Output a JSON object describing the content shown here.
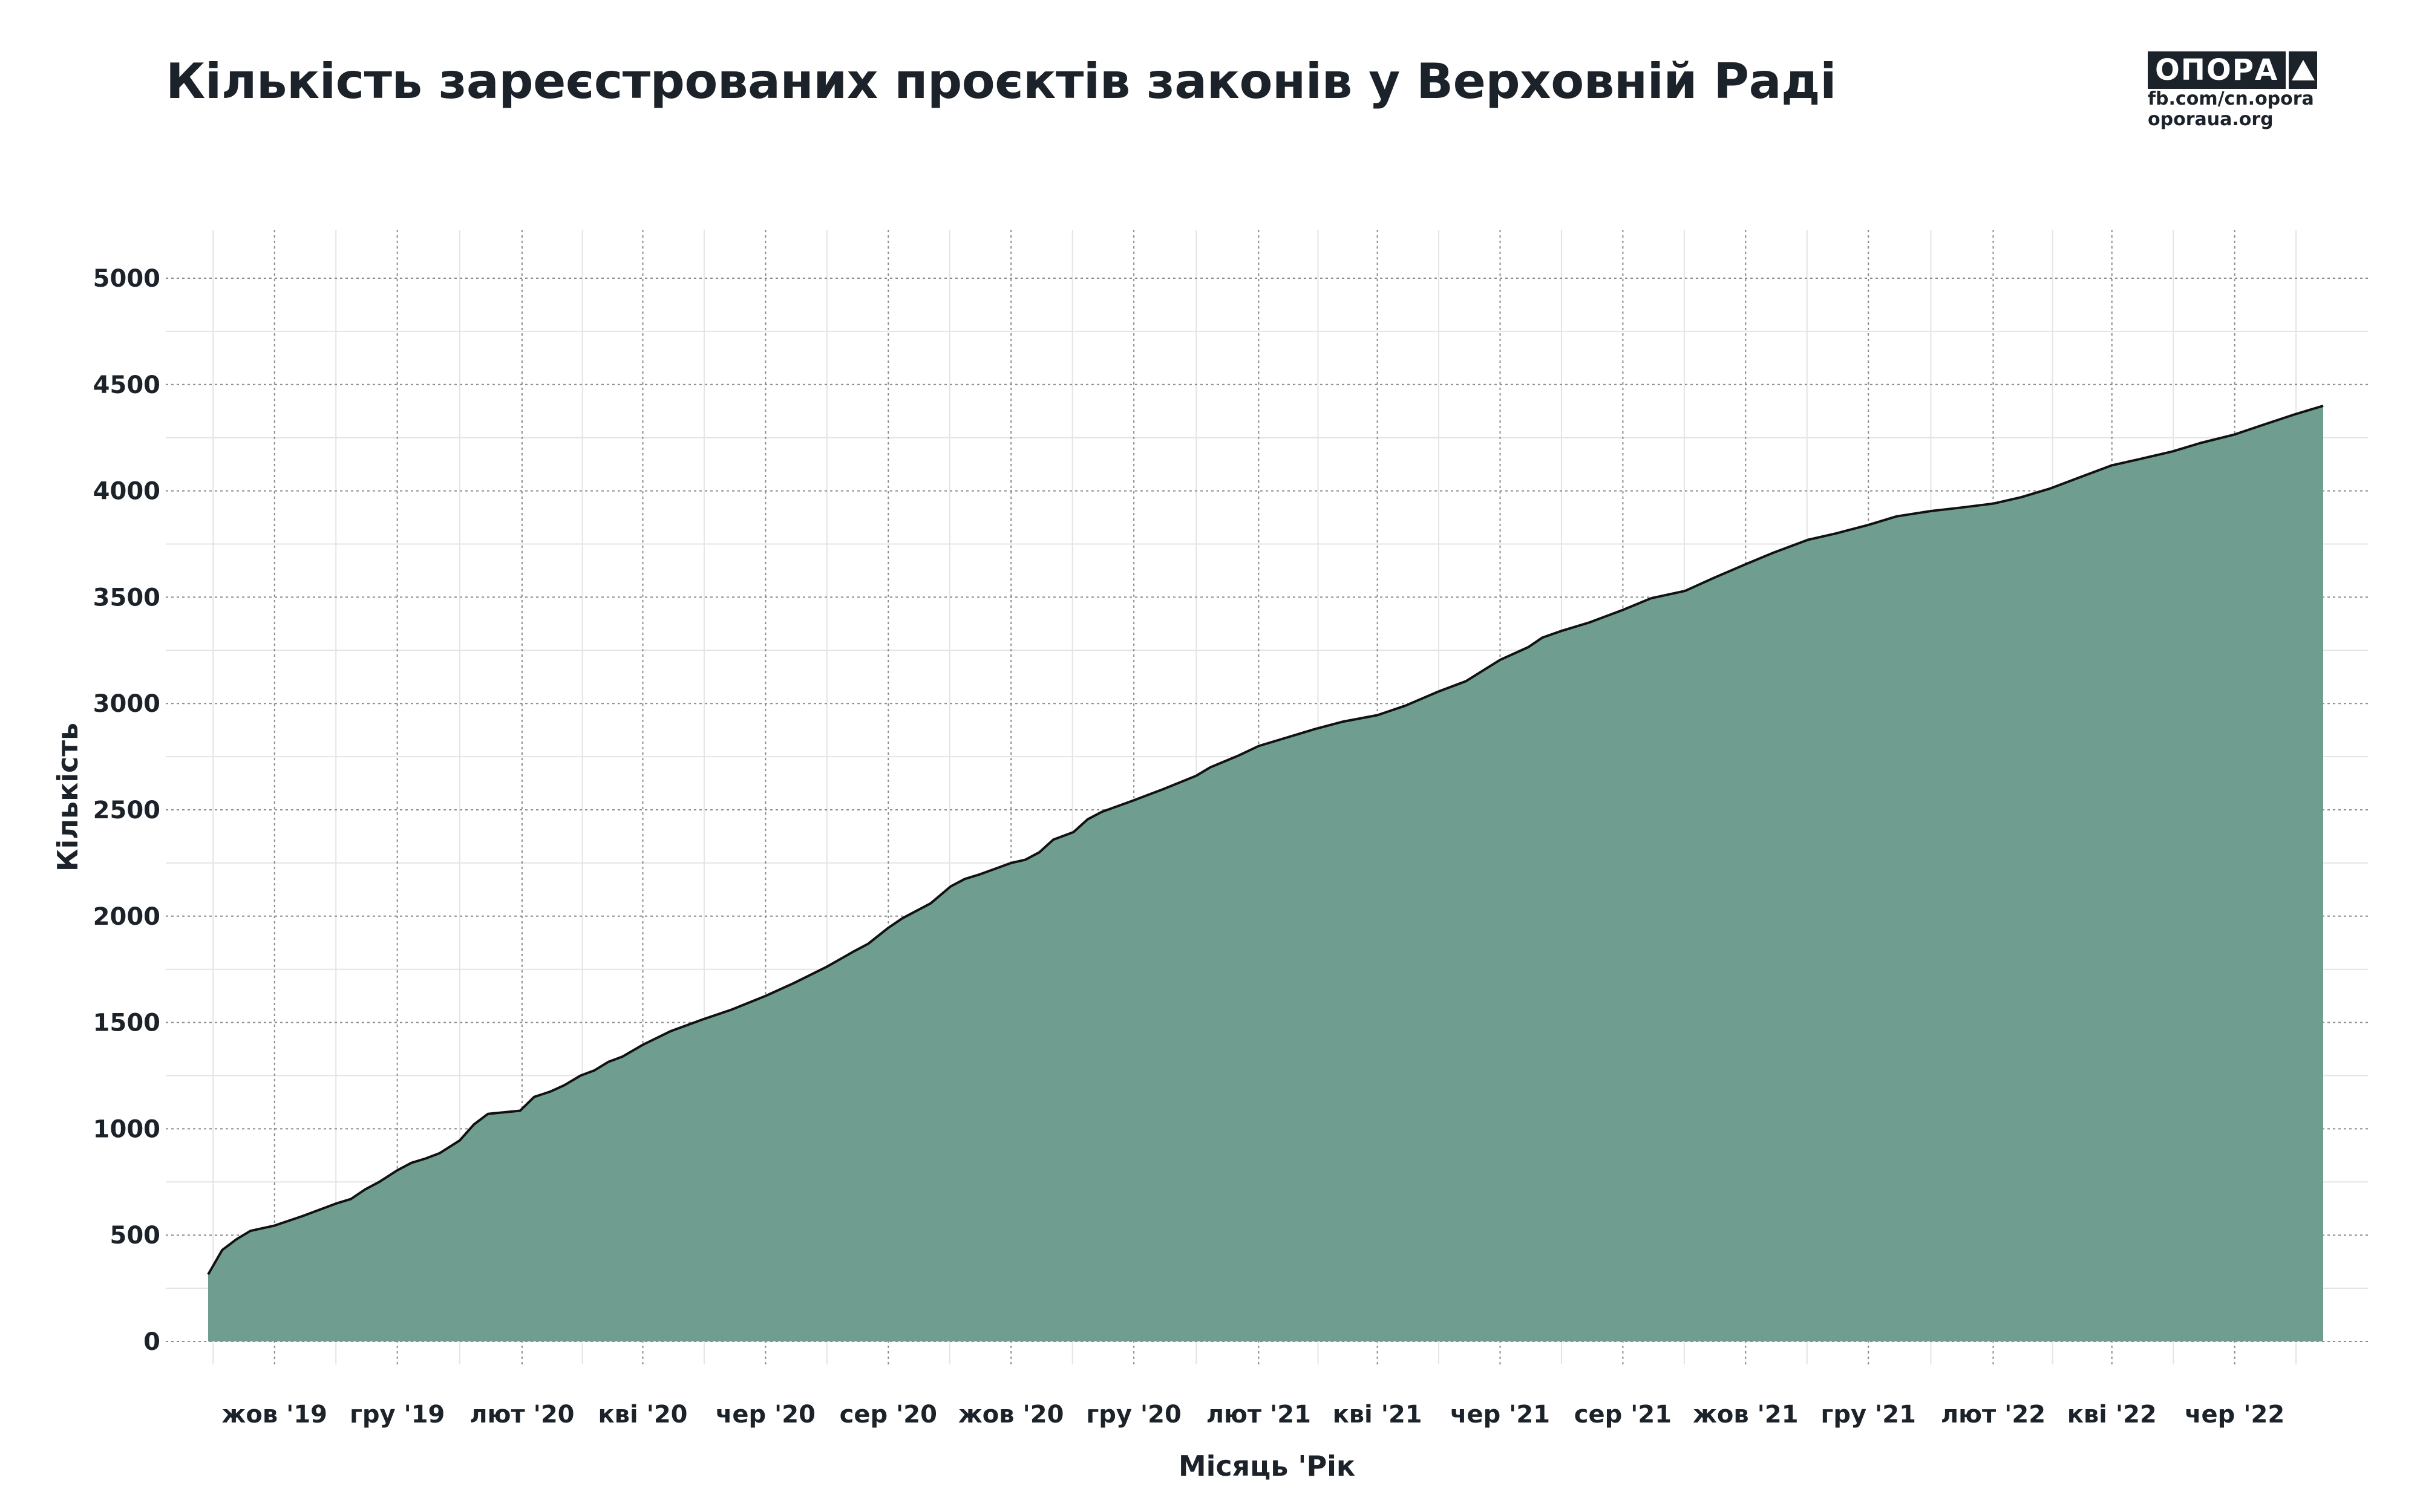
{
  "title": "Кількість зареєстрованих проєктів законів у Верховній Раді",
  "logo": {
    "name": "ОПОРА",
    "icon": "triangle-icon",
    "lines": [
      "fb.com/cn.opora",
      "oporaua.org"
    ]
  },
  "colors": {
    "area": "#6f9e91",
    "line": "#111111",
    "text": "#1b2229"
  },
  "chart_data": {
    "type": "area",
    "title": "Кількість зареєстрованих проєктів законів у Верховній Раді",
    "xlabel": "Місяць 'Рік",
    "ylabel": "Кількість",
    "ylim": [
      0,
      5000
    ],
    "yticks": [
      0,
      500,
      1000,
      1500,
      2000,
      2500,
      3000,
      3500,
      4000,
      4500,
      5000
    ],
    "xlim": [
      "2019-08-29",
      "2022-07-15"
    ],
    "xticks": [
      {
        "date": "2019-10-01",
        "label": "жов '19"
      },
      {
        "date": "2019-12-01",
        "label": "гру '19"
      },
      {
        "date": "2020-02-01",
        "label": "лют '20"
      },
      {
        "date": "2020-04-01",
        "label": "кві '20"
      },
      {
        "date": "2020-06-01",
        "label": "чер '20"
      },
      {
        "date": "2020-08-01",
        "label": "сер '20"
      },
      {
        "date": "2020-10-01",
        "label": "жов '20"
      },
      {
        "date": "2020-12-01",
        "label": "гру '20"
      },
      {
        "date": "2021-02-01",
        "label": "лют '21"
      },
      {
        "date": "2021-04-01",
        "label": "кві '21"
      },
      {
        "date": "2021-06-01",
        "label": "чер '21"
      },
      {
        "date": "2021-08-01",
        "label": "сер '21"
      },
      {
        "date": "2021-10-01",
        "label": "жов '21"
      },
      {
        "date": "2021-12-01",
        "label": "гру '21"
      },
      {
        "date": "2022-02-01",
        "label": "лют '22"
      },
      {
        "date": "2022-04-01",
        "label": "кві '22"
      },
      {
        "date": "2022-06-01",
        "label": "чер '22"
      }
    ],
    "grid": true,
    "series": [
      {
        "points": [
          [
            "2019-08-29",
            315
          ],
          [
            "2019-09-05",
            430
          ],
          [
            "2019-09-12",
            480
          ],
          [
            "2019-09-19",
            520
          ],
          [
            "2019-10-01",
            545
          ],
          [
            "2019-10-15",
            590
          ],
          [
            "2019-11-01",
            650
          ],
          [
            "2019-11-08",
            670
          ],
          [
            "2019-11-15",
            715
          ],
          [
            "2019-11-22",
            750
          ],
          [
            "2019-12-01",
            805
          ],
          [
            "2019-12-08",
            840
          ],
          [
            "2019-12-15",
            860
          ],
          [
            "2019-12-22",
            885
          ],
          [
            "2020-01-01",
            945
          ],
          [
            "2020-01-08",
            1020
          ],
          [
            "2020-01-15",
            1070
          ],
          [
            "2020-01-31",
            1085
          ],
          [
            "2020-02-07",
            1150
          ],
          [
            "2020-02-15",
            1175
          ],
          [
            "2020-02-22",
            1205
          ],
          [
            "2020-03-01",
            1250
          ],
          [
            "2020-03-08",
            1275
          ],
          [
            "2020-03-15",
            1315
          ],
          [
            "2020-03-22",
            1340
          ],
          [
            "2020-04-01",
            1395
          ],
          [
            "2020-04-15",
            1460
          ],
          [
            "2020-05-01",
            1515
          ],
          [
            "2020-05-15",
            1560
          ],
          [
            "2020-06-01",
            1625
          ],
          [
            "2020-06-15",
            1685
          ],
          [
            "2020-07-01",
            1760
          ],
          [
            "2020-07-15",
            1835
          ],
          [
            "2020-07-22",
            1870
          ],
          [
            "2020-08-01",
            1945
          ],
          [
            "2020-08-08",
            1990
          ],
          [
            "2020-08-22",
            2060
          ],
          [
            "2020-09-01",
            2140
          ],
          [
            "2020-09-08",
            2175
          ],
          [
            "2020-09-15",
            2195
          ],
          [
            "2020-10-01",
            2250
          ],
          [
            "2020-10-08",
            2265
          ],
          [
            "2020-10-15",
            2300
          ],
          [
            "2020-10-22",
            2360
          ],
          [
            "2020-11-01",
            2395
          ],
          [
            "2020-11-08",
            2455
          ],
          [
            "2020-11-15",
            2490
          ],
          [
            "2020-12-01",
            2545
          ],
          [
            "2020-12-15",
            2595
          ],
          [
            "2021-01-01",
            2660
          ],
          [
            "2021-01-08",
            2700
          ],
          [
            "2021-01-22",
            2755
          ],
          [
            "2021-02-01",
            2800
          ],
          [
            "2021-02-15",
            2840
          ],
          [
            "2021-03-01",
            2880
          ],
          [
            "2021-03-15",
            2915
          ],
          [
            "2021-04-01",
            2945
          ],
          [
            "2021-04-15",
            2990
          ],
          [
            "2021-05-01",
            3055
          ],
          [
            "2021-05-15",
            3105
          ],
          [
            "2021-06-01",
            3205
          ],
          [
            "2021-06-15",
            3265
          ],
          [
            "2021-06-22",
            3310
          ],
          [
            "2021-07-01",
            3340
          ],
          [
            "2021-07-15",
            3380
          ],
          [
            "2021-08-01",
            3440
          ],
          [
            "2021-08-15",
            3495
          ],
          [
            "2021-09-01",
            3530
          ],
          [
            "2021-09-15",
            3590
          ],
          [
            "2021-10-01",
            3655
          ],
          [
            "2021-10-15",
            3710
          ],
          [
            "2021-11-01",
            3770
          ],
          [
            "2021-11-15",
            3800
          ],
          [
            "2021-12-01",
            3840
          ],
          [
            "2021-12-15",
            3880
          ],
          [
            "2022-01-01",
            3905
          ],
          [
            "2022-01-15",
            3920
          ],
          [
            "2022-02-01",
            3940
          ],
          [
            "2022-02-15",
            3970
          ],
          [
            "2022-03-01",
            4010
          ],
          [
            "2022-03-15",
            4060
          ],
          [
            "2022-04-01",
            4120
          ],
          [
            "2022-04-15",
            4150
          ],
          [
            "2022-05-01",
            4185
          ],
          [
            "2022-05-15",
            4225
          ],
          [
            "2022-06-01",
            4265
          ],
          [
            "2022-06-15",
            4310
          ],
          [
            "2022-07-01",
            4360
          ],
          [
            "2022-07-15",
            4400
          ]
        ]
      }
    ]
  }
}
